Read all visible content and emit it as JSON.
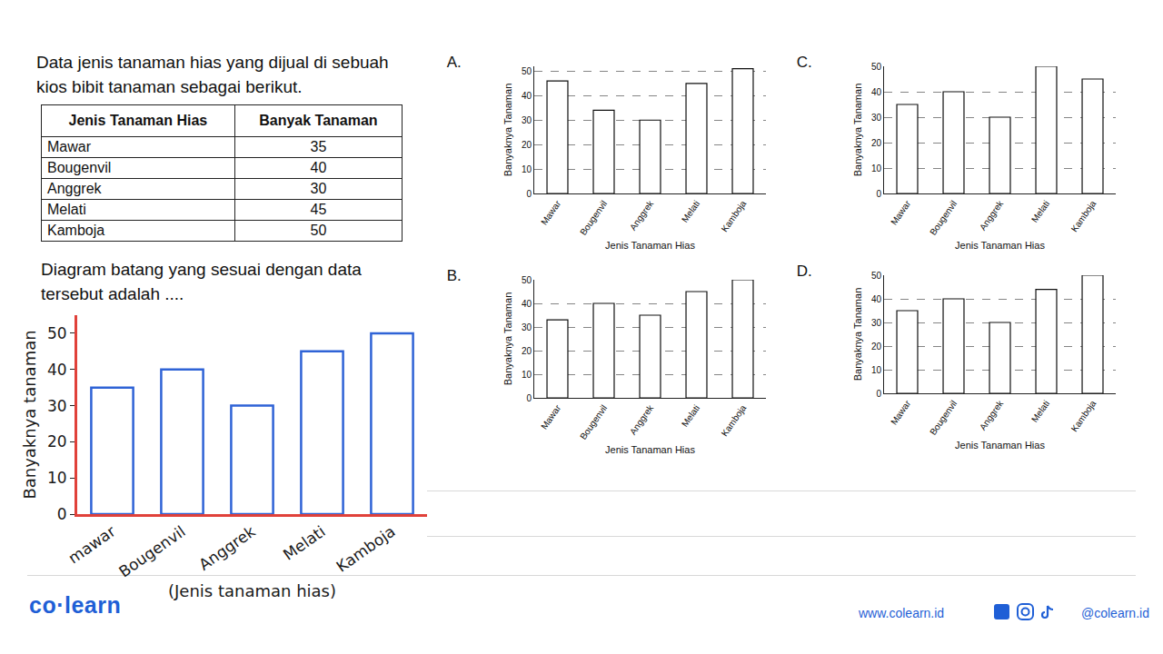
{
  "question": "Data jenis tanaman hias yang dijual di sebuah kios bibit tanaman sebagai berikut.",
  "table": {
    "header": [
      "Jenis Tanaman Hias",
      "Banyak Tanaman"
    ],
    "rows": [
      [
        "Mawar",
        35
      ],
      [
        "Bougenvil",
        40
      ],
      [
        "Anggrek",
        30
      ],
      [
        "Melati",
        45
      ],
      [
        "Kamboja",
        50
      ]
    ]
  },
  "prompt": "Diagram batang yang sesuai dengan data tersebut adalah ....",
  "chart_data": [
    {
      "type": "bar",
      "title": "A.",
      "xlabel": "Jenis Tanaman Hias",
      "ylabel": "Banyaknya Tanaman",
      "categories": [
        "Mawar",
        "Bougenvil",
        "Anggrek",
        "Melati",
        "Kamboja"
      ],
      "values": [
        46,
        34,
        30,
        45,
        51
      ],
      "color": "#111111",
      "ylim": [
        0,
        52
      ],
      "yticks": [
        0,
        10,
        20,
        30,
        40,
        50
      ],
      "grid": true
    },
    {
      "type": "bar",
      "title": "B.",
      "xlabel": "Jenis Tanaman Hias",
      "ylabel": "Banyaknya Tanaman",
      "categories": [
        "Mawar",
        "Bougenvil",
        "Anggrek",
        "Melati",
        "Kamboja"
      ],
      "values": [
        33,
        40,
        35,
        45,
        50
      ],
      "color": "#111111",
      "ylim": [
        0,
        50
      ],
      "yticks": [
        0,
        10,
        20,
        30,
        40,
        50
      ],
      "grid": true
    },
    {
      "type": "bar",
      "title": "C.",
      "xlabel": "Jenis Tanaman Hias",
      "ylabel": "Banyaknya Tanaman",
      "categories": [
        "Mawar",
        "Bougenvil",
        "Anggrek",
        "Melati",
        "Kamboja"
      ],
      "values": [
        35,
        40,
        30,
        50,
        45
      ],
      "color": "#111111",
      "ylim": [
        0,
        50
      ],
      "yticks": [
        0,
        10,
        20,
        30,
        40,
        50
      ],
      "grid": true
    },
    {
      "type": "bar",
      "title": "D.",
      "xlabel": "Jenis Tanaman Hias",
      "ylabel": "Banyaknya Tanaman",
      "categories": [
        "Mawar",
        "Bougenvil",
        "Anggrek",
        "Melati",
        "Kamboja"
      ],
      "values": [
        35,
        40,
        30,
        44,
        50
      ],
      "color": "#111111",
      "ylim": [
        0,
        50
      ],
      "yticks": [
        0,
        10,
        20,
        30,
        40,
        50
      ],
      "grid": true
    },
    {
      "type": "bar",
      "xlabel": "(Jenis tanaman hias)",
      "ylabel": "Banyaknya tanaman",
      "categories": [
        "mawar",
        "Bougenvil",
        "Anggrek",
        "Melati",
        "Kamboja"
      ],
      "values": [
        35,
        40,
        30,
        45,
        50
      ],
      "color": "#2f63d6",
      "ylim": [
        0,
        55
      ],
      "yticks": [
        0,
        10,
        20,
        30,
        40,
        50
      ],
      "grid": false
    }
  ],
  "footer": {
    "logo": "co·learn",
    "website": "www.colearn.id",
    "social": "@colearn.id"
  }
}
